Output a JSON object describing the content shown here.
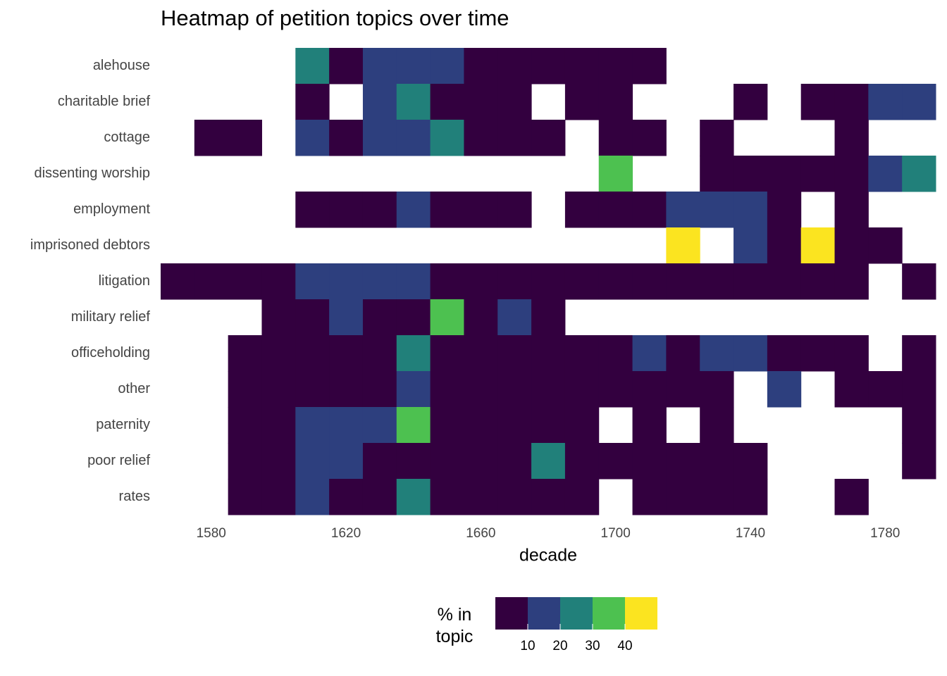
{
  "chart_data": {
    "type": "heatmap",
    "title": "Heatmap of petition topics over time",
    "x_label": "decade",
    "x": [
      1570,
      1580,
      1590,
      1600,
      1610,
      1620,
      1630,
      1640,
      1650,
      1660,
      1670,
      1680,
      1690,
      1700,
      1710,
      1720,
      1730,
      1740,
      1750,
      1760,
      1770,
      1780,
      1790
    ],
    "xlim": [
      1565,
      1795
    ],
    "xticks": [
      1580,
      1620,
      1660,
      1700,
      1740,
      1780
    ],
    "rows": [
      {
        "name": "alehouse",
        "values": [
          null,
          null,
          null,
          null,
          25,
          5,
          15,
          15,
          15,
          5,
          5,
          5,
          5,
          5,
          5,
          null,
          null,
          null,
          null,
          null,
          null,
          null,
          null
        ]
      },
      {
        "name": "charitable brief",
        "values": [
          null,
          null,
          null,
          null,
          5,
          null,
          15,
          25,
          5,
          5,
          5,
          null,
          5,
          5,
          null,
          null,
          null,
          5,
          null,
          5,
          5,
          15,
          15
        ]
      },
      {
        "name": "cottage",
        "values": [
          null,
          5,
          5,
          null,
          15,
          5,
          15,
          15,
          25,
          5,
          5,
          5,
          null,
          5,
          5,
          null,
          5,
          null,
          null,
          null,
          5,
          null,
          null
        ]
      },
      {
        "name": "dissenting worship",
        "values": [
          null,
          null,
          null,
          null,
          null,
          null,
          null,
          null,
          null,
          null,
          null,
          null,
          null,
          35,
          null,
          null,
          5,
          5,
          5,
          5,
          5,
          15,
          25
        ]
      },
      {
        "name": "employment",
        "values": [
          null,
          null,
          null,
          null,
          5,
          5,
          5,
          15,
          5,
          5,
          5,
          null,
          5,
          5,
          5,
          15,
          15,
          15,
          5,
          null,
          5,
          null,
          null
        ]
      },
      {
        "name": "imprisoned debtors",
        "values": [
          null,
          null,
          null,
          null,
          null,
          null,
          null,
          null,
          null,
          null,
          null,
          null,
          null,
          null,
          null,
          45,
          null,
          15,
          5,
          45,
          5,
          5,
          null
        ]
      },
      {
        "name": "litigation",
        "values": [
          5,
          5,
          5,
          5,
          15,
          15,
          15,
          15,
          5,
          5,
          5,
          5,
          5,
          5,
          5,
          5,
          5,
          5,
          5,
          5,
          5,
          null,
          5
        ]
      },
      {
        "name": "military relief",
        "values": [
          null,
          null,
          null,
          5,
          5,
          15,
          5,
          5,
          35,
          5,
          15,
          5,
          null,
          null,
          null,
          null,
          null,
          null,
          null,
          null,
          null,
          null,
          null
        ]
      },
      {
        "name": "officeholding",
        "values": [
          null,
          null,
          5,
          5,
          5,
          5,
          5,
          25,
          5,
          5,
          5,
          5,
          5,
          5,
          15,
          5,
          15,
          15,
          5,
          5,
          5,
          null,
          5
        ]
      },
      {
        "name": "other",
        "values": [
          null,
          null,
          5,
          5,
          5,
          5,
          5,
          15,
          5,
          5,
          5,
          5,
          5,
          5,
          5,
          5,
          5,
          null,
          15,
          null,
          5,
          5,
          5
        ]
      },
      {
        "name": "paternity",
        "values": [
          null,
          null,
          5,
          5,
          15,
          15,
          15,
          35,
          5,
          5,
          5,
          5,
          5,
          null,
          5,
          null,
          5,
          null,
          null,
          null,
          null,
          null,
          5
        ]
      },
      {
        "name": "poor relief",
        "values": [
          null,
          null,
          5,
          5,
          15,
          15,
          5,
          5,
          5,
          5,
          5,
          25,
          5,
          5,
          5,
          5,
          5,
          5,
          null,
          null,
          null,
          null,
          5
        ]
      },
      {
        "name": "rates",
        "values": [
          null,
          null,
          5,
          5,
          15,
          5,
          5,
          25,
          5,
          5,
          5,
          5,
          5,
          null,
          5,
          5,
          5,
          5,
          null,
          null,
          5,
          null,
          null
        ]
      }
    ],
    "legend_title": "% in topic",
    "color_breaks": [
      10,
      20,
      30,
      40
    ],
    "colors": [
      "#33003f",
      "#2d3f7e",
      "#21807a",
      "#4dc150",
      "#fbe420"
    ]
  }
}
